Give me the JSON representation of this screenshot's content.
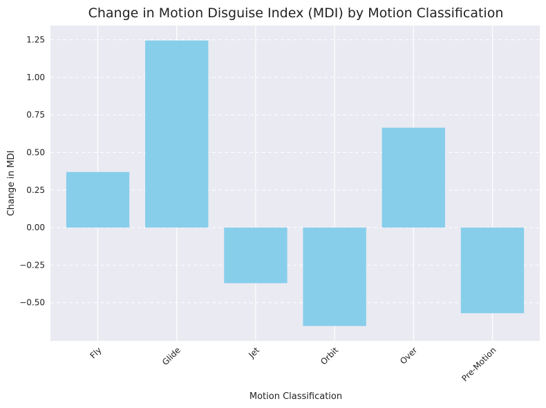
{
  "chart_data": {
    "type": "bar",
    "title": "Change in Motion Disguise Index (MDI) by Motion Classification",
    "xlabel": "Motion Classification",
    "ylabel": "Change in MDI",
    "categories": [
      "Fly",
      "Glide",
      "Jet",
      "Orbit",
      "Over",
      "Pre-Motion"
    ],
    "values": [
      0.37,
      1.245,
      -0.37,
      -0.655,
      0.665,
      -0.57
    ],
    "yticks": [
      -0.5,
      -0.25,
      0,
      0.25,
      0.5,
      0.75,
      1,
      1.25
    ],
    "ytick_labels": [
      "−0.50",
      "−0.25",
      "0.00",
      "0.25",
      "0.50",
      "0.75",
      "1.00",
      "1.25"
    ],
    "ylim": [
      -0.7545,
      1.3445
    ],
    "grid": true,
    "colors": {
      "bar": "#87ceeb",
      "plot_background": "#eaeaf2",
      "grid": "#ffffff",
      "text": "#222222"
    }
  }
}
